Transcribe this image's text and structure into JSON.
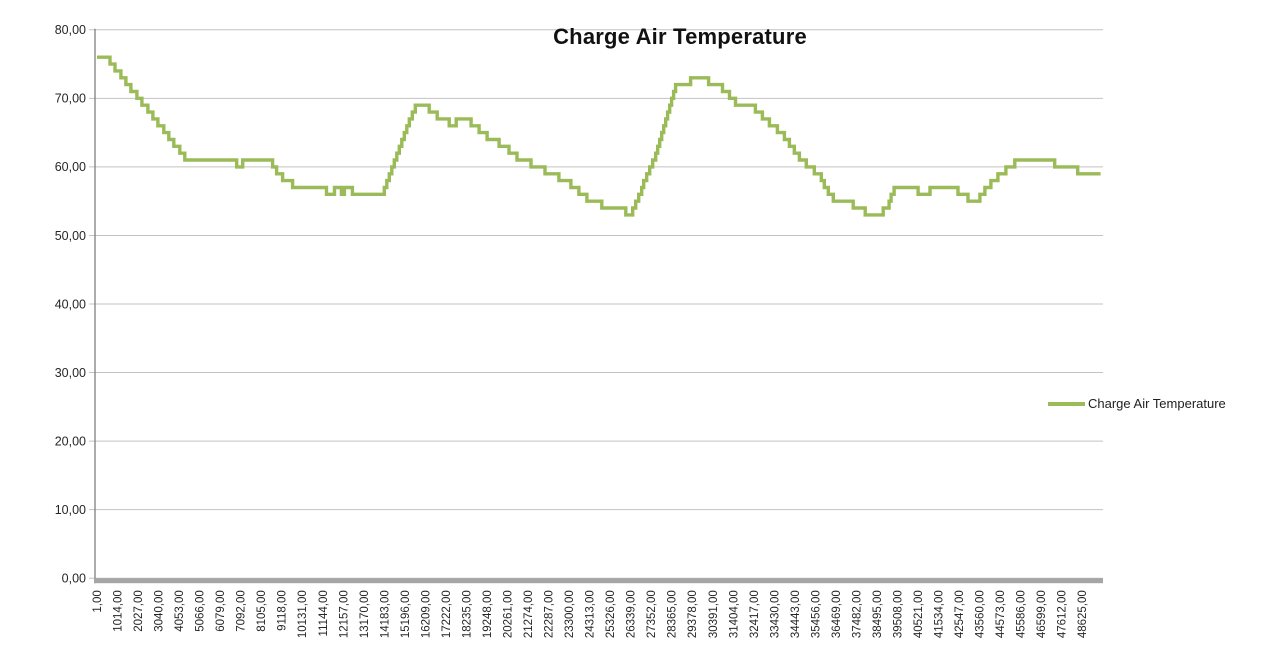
{
  "chart": {
    "title": "Charge Air Temperature",
    "legend": {
      "label": "Charge Air Temperature",
      "swatch_color": "#9BBB59"
    }
  },
  "chart_data": {
    "type": "line",
    "subtype": "step-after",
    "title": "Charge Air Temperature",
    "xlabel": "",
    "ylabel": "",
    "xlim": [
      1,
      49650
    ],
    "ylim": [
      0,
      80
    ],
    "grid": "horizontal-only",
    "legend_position": "right-middle",
    "y_ticks": [
      0,
      10,
      20,
      30,
      40,
      50,
      60,
      70,
      80
    ],
    "y_tick_labels": [
      "0,00",
      "10,00",
      "20,00",
      "30,00",
      "40,00",
      "50,00",
      "60,00",
      "70,00",
      "80,00"
    ],
    "x_ticks": [
      1,
      1014,
      2027,
      3040,
      4053,
      5066,
      6079,
      7092,
      8105,
      9118,
      10131,
      11144,
      12157,
      13170,
      14183,
      15196,
      16209,
      17222,
      18235,
      19248,
      20261,
      21274,
      22287,
      23300,
      24313,
      25326,
      26339,
      27352,
      28365,
      29378,
      30391,
      31404,
      32417,
      33430,
      34443,
      35456,
      36469,
      37482,
      38495,
      39508,
      40521,
      41534,
      42547,
      43560,
      44573,
      45586,
      46599,
      47612,
      48625
    ],
    "x_tick_labels": [
      "1,00",
      "1014,00",
      "2027,00",
      "3040,00",
      "4053,00",
      "5066,00",
      "6079,00",
      "7092,00",
      "8105,00",
      "9118,00",
      "10131,00",
      "11144,00",
      "12157,00",
      "13170,00",
      "14183,00",
      "15196,00",
      "16209,00",
      "17222,00",
      "18235,00",
      "19248,00",
      "20261,00",
      "21274,00",
      "22287,00",
      "23300,00",
      "24313,00",
      "25326,00",
      "26339,00",
      "27352,00",
      "28365,00",
      "29378,00",
      "30391,00",
      "31404,00",
      "32417,00",
      "33430,00",
      "34443,00",
      "35456,00",
      "36469,00",
      "37482,00",
      "38495,00",
      "39508,00",
      "40521,00",
      "41534,00",
      "42547,00",
      "43560,00",
      "44573,00",
      "45586,00",
      "46599,00",
      "47612,00",
      "48625,00"
    ],
    "series": [
      {
        "name": "Charge Air Temperature",
        "color": "#9BBB59",
        "x_end": 49533,
        "step_points": [
          [
            1,
            76
          ],
          [
            641,
            75
          ],
          [
            887,
            74
          ],
          [
            1183,
            73
          ],
          [
            1429,
            72
          ],
          [
            1675,
            71
          ],
          [
            1970,
            70
          ],
          [
            2217,
            69
          ],
          [
            2512,
            68
          ],
          [
            2758,
            67
          ],
          [
            3005,
            66
          ],
          [
            3300,
            65
          ],
          [
            3546,
            64
          ],
          [
            3792,
            63
          ],
          [
            4088,
            62
          ],
          [
            4334,
            61
          ],
          [
            6895,
            60
          ],
          [
            7190,
            61
          ],
          [
            8667,
            60
          ],
          [
            8864,
            59
          ],
          [
            9160,
            58
          ],
          [
            9652,
            57
          ],
          [
            11326,
            56
          ],
          [
            11720,
            57
          ],
          [
            12065,
            56
          ],
          [
            12212,
            57
          ],
          [
            12606,
            56
          ],
          [
            14182,
            57
          ],
          [
            14305,
            58
          ],
          [
            14428,
            59
          ],
          [
            14551,
            60
          ],
          [
            14674,
            61
          ],
          [
            14797,
            62
          ],
          [
            14920,
            63
          ],
          [
            15043,
            64
          ],
          [
            15166,
            65
          ],
          [
            15289,
            66
          ],
          [
            15412,
            67
          ],
          [
            15560,
            68
          ],
          [
            15709,
            69
          ],
          [
            16397,
            68
          ],
          [
            16791,
            67
          ],
          [
            17382,
            66
          ],
          [
            17727,
            67
          ],
          [
            18465,
            66
          ],
          [
            18859,
            65
          ],
          [
            19253,
            64
          ],
          [
            19844,
            63
          ],
          [
            20336,
            62
          ],
          [
            20730,
            61
          ],
          [
            21419,
            60
          ],
          [
            22109,
            59
          ],
          [
            22798,
            58
          ],
          [
            23389,
            57
          ],
          [
            23783,
            56
          ],
          [
            24177,
            55
          ],
          [
            24915,
            54
          ],
          [
            26097,
            53
          ],
          [
            26441,
            54
          ],
          [
            26589,
            55
          ],
          [
            26737,
            56
          ],
          [
            26884,
            57
          ],
          [
            26983,
            58
          ],
          [
            27130,
            59
          ],
          [
            27278,
            60
          ],
          [
            27426,
            61
          ],
          [
            27573,
            62
          ],
          [
            27672,
            63
          ],
          [
            27770,
            64
          ],
          [
            27869,
            65
          ],
          [
            27967,
            66
          ],
          [
            28066,
            67
          ],
          [
            28164,
            68
          ],
          [
            28263,
            69
          ],
          [
            28361,
            70
          ],
          [
            28460,
            71
          ],
          [
            28558,
            72
          ],
          [
            29297,
            73
          ],
          [
            30183,
            72
          ],
          [
            30872,
            71
          ],
          [
            31217,
            70
          ],
          [
            31512,
            69
          ],
          [
            32497,
            68
          ],
          [
            32842,
            67
          ],
          [
            33186,
            66
          ],
          [
            33580,
            65
          ],
          [
            33925,
            64
          ],
          [
            34171,
            63
          ],
          [
            34417,
            62
          ],
          [
            34664,
            61
          ],
          [
            35008,
            60
          ],
          [
            35402,
            59
          ],
          [
            35747,
            58
          ],
          [
            35895,
            57
          ],
          [
            36092,
            56
          ],
          [
            36338,
            55
          ],
          [
            37322,
            54
          ],
          [
            37913,
            53
          ],
          [
            38800,
            54
          ],
          [
            39095,
            55
          ],
          [
            39193,
            56
          ],
          [
            39341,
            57
          ],
          [
            40523,
            56
          ],
          [
            41114,
            57
          ],
          [
            42492,
            56
          ],
          [
            42985,
            55
          ],
          [
            43575,
            56
          ],
          [
            43822,
            57
          ],
          [
            44117,
            58
          ],
          [
            44462,
            59
          ],
          [
            44856,
            60
          ],
          [
            45299,
            61
          ],
          [
            47268,
            60
          ],
          [
            48400,
            59
          ]
        ]
      }
    ],
    "colors": {
      "series_line": "#9BBB59",
      "gridline": "#C3C3C3",
      "axis_line": "#7F7F7F",
      "bottom_axis_bar": "#A5A5A5",
      "tick_text": "#262626",
      "title_text": "#111111"
    }
  }
}
